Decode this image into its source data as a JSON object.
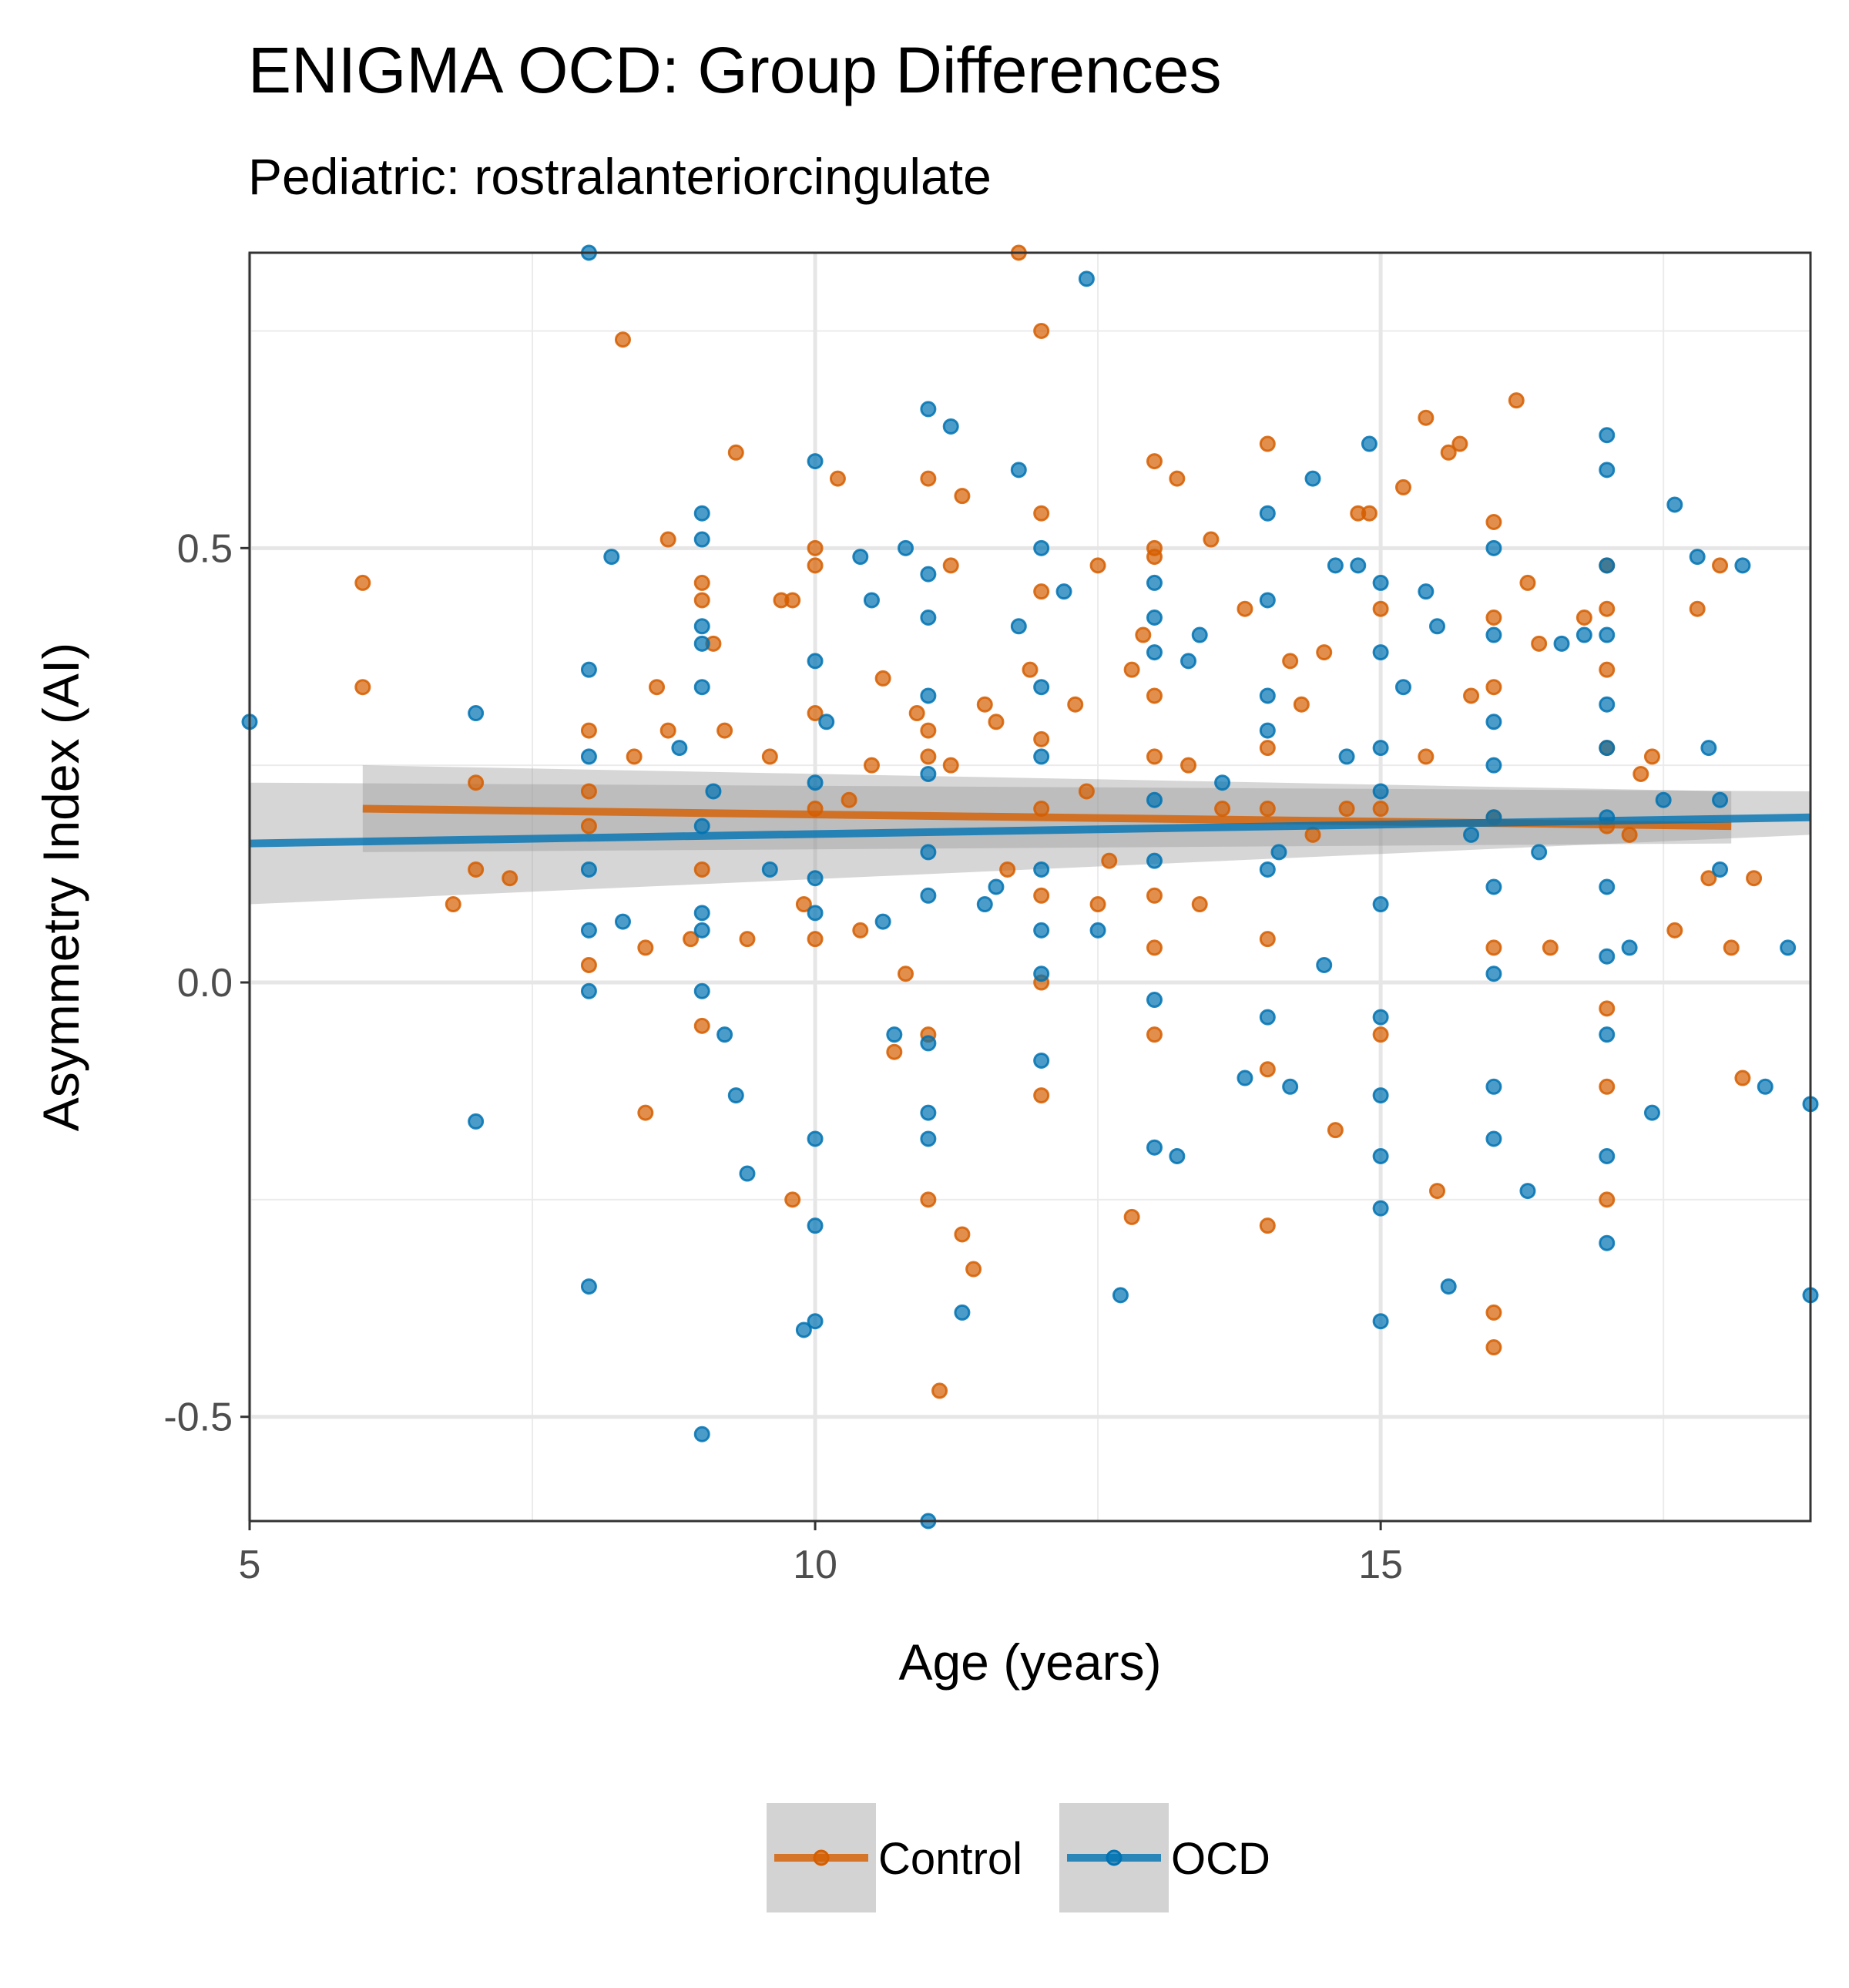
{
  "chart_data": {
    "type": "scatter",
    "title": "ENIGMA OCD: Group Differences",
    "subtitle": "Pediatric: rostralanteriorcingulate",
    "xlabel": "Age (years)",
    "ylabel": "Asymmetry Index (AI)",
    "xlim": [
      5,
      18.8
    ],
    "ylim": [
      -0.62,
      0.84
    ],
    "x_ticks": [
      5,
      10,
      15
    ],
    "x_tick_labels": [
      "5",
      "10",
      "15"
    ],
    "y_ticks": [
      -0.5,
      0.0,
      0.5
    ],
    "y_tick_labels": [
      "-0.5",
      "0.0",
      "0.5"
    ],
    "grid": true,
    "legend": {
      "position": "bottom",
      "entries": [
        "Control",
        "OCD"
      ]
    },
    "colors": {
      "Control": "#D55E00",
      "OCD": "#0072B2",
      "ribbon": "#999999"
    },
    "series": [
      {
        "name": "Control",
        "fit": {
          "x": [
            6,
            18.1
          ],
          "y": [
            0.2,
            0.18
          ],
          "ci_lower": [
            0.15,
            0.16
          ],
          "ci_upper": [
            0.25,
            0.22
          ]
        },
        "points": [
          [
            6.0,
            0.46
          ],
          [
            6.0,
            0.34
          ],
          [
            6.8,
            0.09
          ],
          [
            7.0,
            0.13
          ],
          [
            7.0,
            0.23
          ],
          [
            7.3,
            0.12
          ],
          [
            8.0,
            0.29
          ],
          [
            8.0,
            0.22
          ],
          [
            8.0,
            0.18
          ],
          [
            8.0,
            0.02
          ],
          [
            8.3,
            0.74
          ],
          [
            8.4,
            0.26
          ],
          [
            8.5,
            0.04
          ],
          [
            8.5,
            -0.15
          ],
          [
            8.6,
            0.34
          ],
          [
            8.7,
            0.29
          ],
          [
            8.7,
            0.51
          ],
          [
            8.9,
            0.05
          ],
          [
            9.0,
            0.46
          ],
          [
            9.0,
            0.44
          ],
          [
            9.0,
            0.13
          ],
          [
            9.0,
            -0.05
          ],
          [
            9.1,
            0.39
          ],
          [
            9.2,
            0.29
          ],
          [
            9.3,
            0.61
          ],
          [
            9.4,
            0.05
          ],
          [
            9.6,
            0.26
          ],
          [
            9.7,
            0.44
          ],
          [
            9.8,
            0.44
          ],
          [
            9.8,
            -0.25
          ],
          [
            9.9,
            0.09
          ],
          [
            10.0,
            0.5
          ],
          [
            10.0,
            0.48
          ],
          [
            10.0,
            0.31
          ],
          [
            10.0,
            0.2
          ],
          [
            10.0,
            0.05
          ],
          [
            10.2,
            0.58
          ],
          [
            10.3,
            0.21
          ],
          [
            10.4,
            0.06
          ],
          [
            10.5,
            0.25
          ],
          [
            10.6,
            0.35
          ],
          [
            10.7,
            -0.08
          ],
          [
            10.8,
            0.01
          ],
          [
            10.9,
            0.31
          ],
          [
            11.0,
            0.58
          ],
          [
            11.0,
            0.29
          ],
          [
            11.0,
            0.26
          ],
          [
            11.0,
            -0.25
          ],
          [
            11.0,
            -0.06
          ],
          [
            11.1,
            -0.47
          ],
          [
            11.2,
            0.48
          ],
          [
            11.2,
            0.25
          ],
          [
            11.3,
            0.56
          ],
          [
            11.3,
            -0.29
          ],
          [
            11.4,
            -0.33
          ],
          [
            11.5,
            0.32
          ],
          [
            11.6,
            0.3
          ],
          [
            11.7,
            0.13
          ],
          [
            11.8,
            0.84
          ],
          [
            11.9,
            0.36
          ],
          [
            12.0,
            0.75
          ],
          [
            12.0,
            0.54
          ],
          [
            12.0,
            0.45
          ],
          [
            12.0,
            0.28
          ],
          [
            12.0,
            0.2
          ],
          [
            12.0,
            0.1
          ],
          [
            12.0,
            0.0
          ],
          [
            12.0,
            -0.13
          ],
          [
            12.3,
            0.32
          ],
          [
            12.4,
            0.22
          ],
          [
            12.5,
            0.48
          ],
          [
            12.5,
            0.09
          ],
          [
            12.6,
            0.14
          ],
          [
            12.8,
            0.36
          ],
          [
            12.8,
            -0.27
          ],
          [
            12.9,
            0.4
          ],
          [
            13.0,
            0.6
          ],
          [
            13.0,
            0.5
          ],
          [
            13.0,
            0.49
          ],
          [
            13.0,
            0.33
          ],
          [
            13.0,
            0.26
          ],
          [
            13.0,
            0.1
          ],
          [
            13.0,
            0.04
          ],
          [
            13.0,
            -0.06
          ],
          [
            13.2,
            0.58
          ],
          [
            13.3,
            0.25
          ],
          [
            13.4,
            0.09
          ],
          [
            13.5,
            0.51
          ],
          [
            13.6,
            0.2
          ],
          [
            13.8,
            0.43
          ],
          [
            14.0,
            0.62
          ],
          [
            14.0,
            0.27
          ],
          [
            14.0,
            0.2
          ],
          [
            14.0,
            0.05
          ],
          [
            14.0,
            -0.1
          ],
          [
            14.0,
            -0.28
          ],
          [
            14.2,
            0.37
          ],
          [
            14.3,
            0.32
          ],
          [
            14.4,
            0.17
          ],
          [
            14.5,
            0.38
          ],
          [
            14.6,
            -0.17
          ],
          [
            14.7,
            0.2
          ],
          [
            14.8,
            0.54
          ],
          [
            14.9,
            0.54
          ],
          [
            15.0,
            0.43
          ],
          [
            15.0,
            0.2
          ],
          [
            15.0,
            -0.06
          ],
          [
            15.2,
            0.57
          ],
          [
            15.4,
            0.26
          ],
          [
            15.4,
            0.65
          ],
          [
            15.5,
            -0.24
          ],
          [
            15.6,
            0.61
          ],
          [
            15.7,
            0.62
          ],
          [
            15.8,
            0.33
          ],
          [
            16.0,
            0.53
          ],
          [
            16.0,
            0.42
          ],
          [
            16.0,
            0.34
          ],
          [
            16.0,
            0.19
          ],
          [
            16.0,
            0.04
          ],
          [
            16.0,
            -0.38
          ],
          [
            16.0,
            -0.42
          ],
          [
            16.2,
            0.67
          ],
          [
            16.3,
            0.46
          ],
          [
            16.4,
            0.39
          ],
          [
            16.5,
            0.04
          ],
          [
            16.8,
            0.42
          ],
          [
            17.0,
            0.48
          ],
          [
            17.0,
            0.43
          ],
          [
            17.0,
            0.36
          ],
          [
            17.0,
            0.27
          ],
          [
            17.0,
            0.18
          ],
          [
            17.0,
            -0.03
          ],
          [
            17.0,
            -0.12
          ],
          [
            17.0,
            -0.25
          ],
          [
            17.2,
            0.17
          ],
          [
            17.3,
            0.24
          ],
          [
            17.4,
            0.26
          ],
          [
            17.6,
            0.06
          ],
          [
            17.8,
            0.43
          ],
          [
            17.9,
            0.12
          ],
          [
            18.0,
            0.48
          ],
          [
            18.1,
            0.04
          ],
          [
            18.2,
            -0.11
          ],
          [
            18.3,
            0.12
          ]
        ]
      },
      {
        "name": "OCD",
        "fit": {
          "x": [
            5,
            18.8
          ],
          "y": [
            0.16,
            0.19
          ],
          "ci_lower": [
            0.09,
            0.17
          ],
          "ci_upper": [
            0.23,
            0.22
          ]
        },
        "points": [
          [
            5.0,
            0.3
          ],
          [
            7.0,
            0.31
          ],
          [
            7.0,
            -0.16
          ],
          [
            8.0,
            0.84
          ],
          [
            8.0,
            0.36
          ],
          [
            8.0,
            0.26
          ],
          [
            8.0,
            0.13
          ],
          [
            8.0,
            0.06
          ],
          [
            8.0,
            -0.01
          ],
          [
            8.0,
            -0.35
          ],
          [
            8.2,
            0.49
          ],
          [
            8.3,
            0.07
          ],
          [
            8.8,
            0.27
          ],
          [
            9.0,
            0.54
          ],
          [
            9.0,
            0.51
          ],
          [
            9.0,
            0.41
          ],
          [
            9.0,
            0.39
          ],
          [
            9.0,
            0.34
          ],
          [
            9.0,
            0.18
          ],
          [
            9.0,
            0.08
          ],
          [
            9.0,
            0.06
          ],
          [
            9.0,
            -0.01
          ],
          [
            9.0,
            -0.52
          ],
          [
            9.1,
            0.22
          ],
          [
            9.2,
            -0.06
          ],
          [
            9.3,
            -0.13
          ],
          [
            9.4,
            -0.22
          ],
          [
            9.6,
            0.13
          ],
          [
            9.9,
            -0.4
          ],
          [
            10.0,
            0.6
          ],
          [
            10.0,
            0.37
          ],
          [
            10.0,
            0.23
          ],
          [
            10.0,
            0.12
          ],
          [
            10.0,
            0.08
          ],
          [
            10.0,
            -0.18
          ],
          [
            10.0,
            -0.28
          ],
          [
            10.0,
            -0.39
          ],
          [
            10.1,
            0.3
          ],
          [
            10.4,
            0.49
          ],
          [
            10.5,
            0.44
          ],
          [
            10.6,
            0.07
          ],
          [
            10.7,
            -0.06
          ],
          [
            10.8,
            0.5
          ],
          [
            11.0,
            0.66
          ],
          [
            11.0,
            0.47
          ],
          [
            11.0,
            0.42
          ],
          [
            11.0,
            0.33
          ],
          [
            11.0,
            0.24
          ],
          [
            11.0,
            0.15
          ],
          [
            11.0,
            0.1
          ],
          [
            11.0,
            -0.07
          ],
          [
            11.0,
            -0.15
          ],
          [
            11.0,
            -0.18
          ],
          [
            11.0,
            -0.62
          ],
          [
            11.2,
            0.64
          ],
          [
            11.3,
            -0.38
          ],
          [
            11.5,
            0.09
          ],
          [
            11.6,
            0.11
          ],
          [
            11.8,
            0.41
          ],
          [
            11.8,
            0.59
          ],
          [
            12.0,
            0.5
          ],
          [
            12.0,
            0.34
          ],
          [
            12.0,
            0.26
          ],
          [
            12.0,
            0.13
          ],
          [
            12.0,
            0.06
          ],
          [
            12.0,
            0.01
          ],
          [
            12.0,
            -0.09
          ],
          [
            12.2,
            0.45
          ],
          [
            12.4,
            0.81
          ],
          [
            12.5,
            0.06
          ],
          [
            12.7,
            -0.36
          ],
          [
            13.0,
            0.46
          ],
          [
            13.0,
            0.42
          ],
          [
            13.0,
            0.38
          ],
          [
            13.0,
            0.21
          ],
          [
            13.0,
            0.14
          ],
          [
            13.0,
            -0.02
          ],
          [
            13.0,
            -0.19
          ],
          [
            13.2,
            -0.2
          ],
          [
            13.3,
            0.37
          ],
          [
            13.4,
            0.4
          ],
          [
            13.6,
            0.23
          ],
          [
            13.8,
            -0.11
          ],
          [
            14.0,
            0.54
          ],
          [
            14.0,
            0.44
          ],
          [
            14.0,
            0.33
          ],
          [
            14.0,
            0.29
          ],
          [
            14.0,
            0.13
          ],
          [
            14.0,
            -0.04
          ],
          [
            14.1,
            0.15
          ],
          [
            14.2,
            -0.12
          ],
          [
            14.4,
            0.58
          ],
          [
            14.5,
            0.02
          ],
          [
            14.6,
            0.48
          ],
          [
            14.7,
            0.26
          ],
          [
            14.8,
            0.48
          ],
          [
            14.9,
            0.62
          ],
          [
            15.0,
            0.46
          ],
          [
            15.0,
            0.38
          ],
          [
            15.0,
            0.27
          ],
          [
            15.0,
            0.22
          ],
          [
            15.0,
            0.09
          ],
          [
            15.0,
            -0.04
          ],
          [
            15.0,
            -0.13
          ],
          [
            15.0,
            -0.2
          ],
          [
            15.0,
            -0.26
          ],
          [
            15.0,
            -0.39
          ],
          [
            15.2,
            0.34
          ],
          [
            15.4,
            0.45
          ],
          [
            15.5,
            0.41
          ],
          [
            15.6,
            -0.35
          ],
          [
            15.8,
            0.17
          ],
          [
            16.0,
            0.5
          ],
          [
            16.0,
            0.4
          ],
          [
            16.0,
            0.3
          ],
          [
            16.0,
            0.25
          ],
          [
            16.0,
            0.19
          ],
          [
            16.0,
            0.11
          ],
          [
            16.0,
            0.01
          ],
          [
            16.0,
            -0.12
          ],
          [
            16.0,
            -0.18
          ],
          [
            16.3,
            -0.24
          ],
          [
            16.4,
            0.15
          ],
          [
            16.6,
            0.39
          ],
          [
            16.8,
            0.4
          ],
          [
            17.0,
            0.63
          ],
          [
            17.0,
            0.59
          ],
          [
            17.0,
            0.48
          ],
          [
            17.0,
            0.4
          ],
          [
            17.0,
            0.32
          ],
          [
            17.0,
            0.27
          ],
          [
            17.0,
            0.19
          ],
          [
            17.0,
            0.11
          ],
          [
            17.0,
            0.03
          ],
          [
            17.0,
            -0.06
          ],
          [
            17.0,
            -0.2
          ],
          [
            17.0,
            -0.3
          ],
          [
            17.2,
            0.04
          ],
          [
            17.4,
            -0.15
          ],
          [
            17.5,
            0.21
          ],
          [
            17.6,
            0.55
          ],
          [
            17.8,
            0.49
          ],
          [
            17.9,
            0.27
          ],
          [
            18.0,
            0.21
          ],
          [
            18.0,
            0.13
          ],
          [
            18.2,
            0.48
          ],
          [
            18.4,
            -0.12
          ],
          [
            18.6,
            0.04
          ],
          [
            18.8,
            -0.14
          ],
          [
            18.8,
            -0.36
          ]
        ]
      }
    ]
  }
}
